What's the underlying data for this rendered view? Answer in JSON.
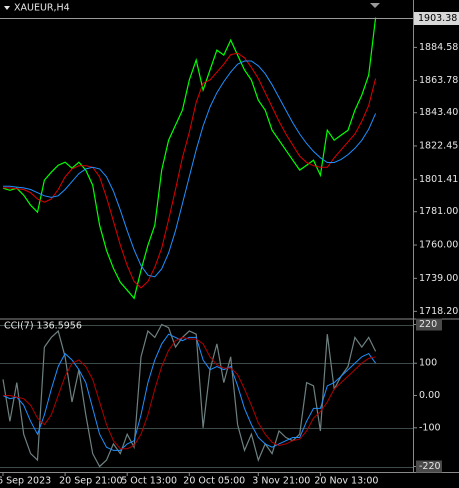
{
  "chart_data": [
    {
      "type": "line",
      "title": "XAUEUR,H4",
      "categories": [
        "6 Sep 2023",
        null,
        null,
        null,
        null,
        null,
        null,
        null,
        null,
        "20 Sep 21:00",
        null,
        null,
        null,
        null,
        null,
        null,
        null,
        null,
        "5 Oct 13:00",
        null,
        null,
        null,
        null,
        null,
        null,
        null,
        null,
        "20 Oct 05:00",
        null,
        null,
        null,
        null,
        null,
        null,
        null,
        null,
        null,
        "3 Nov 21:00",
        null,
        null,
        null,
        null,
        null,
        null,
        null,
        null,
        "20 Nov 13:00",
        null,
        null,
        null,
        null,
        null,
        null,
        null,
        null,
        null,
        null,
        null,
        null,
        null
      ],
      "series": [
        {
          "color": "#00ff00",
          "values": [
            1795.8,
            1794.5,
            1795.8,
            1791.4,
            1785.1,
            1780.7,
            1800.9,
            1805.9,
            1810.3,
            1812.2,
            1808.4,
            1812.2,
            1807.2,
            1797.7,
            1772.5,
            1756.7,
            1745.3,
            1736.5,
            1731.5,
            1726.4,
            1744.1,
            1759.8,
            1772.5,
            1807.2,
            1826.1,
            1835.6,
            1845.0,
            1864.0,
            1876.6,
            1857.7,
            1870.3,
            1882.9,
            1879.7,
            1889.2,
            1879.7,
            1870.3,
            1864.0,
            1851.3,
            1845.0,
            1832.4,
            1826.1,
            1819.8,
            1813.5,
            1807.2,
            1810.3,
            1813.5,
            1804.0,
            1832.4,
            1826.1,
            1829.3,
            1832.4,
            1845.0,
            1854.5,
            1867.1,
            1903.38,
            null,
            null,
            null,
            null,
            null
          ]
        },
        {
          "color": "#e00000",
          "values": [
            1796,
            1796,
            1795.5,
            1795,
            1793,
            1789,
            1787,
            1789,
            1795,
            1803,
            1808,
            1810,
            1810,
            1809,
            1803,
            1790,
            1775,
            1760,
            1747,
            1737,
            1733,
            1737,
            1746,
            1758,
            1776,
            1795,
            1815,
            1831,
            1850,
            1862,
            1864,
            1869,
            1874,
            1880,
            1881,
            1878,
            1872,
            1865,
            1856,
            1847,
            1838,
            1830,
            1823,
            1816,
            1812,
            1810,
            1809,
            1809,
            1815,
            1820,
            1825,
            1830,
            1838,
            1848,
            1865,
            null,
            null,
            null,
            null,
            null
          ]
        },
        {
          "color": "#1e90ff",
          "values": [
            1797,
            1797,
            1796.5,
            1796,
            1795,
            1793,
            1791,
            1790,
            1791,
            1795,
            1800,
            1805,
            1808,
            1809,
            1808,
            1803,
            1794,
            1782,
            1769,
            1757,
            1747,
            1741,
            1740,
            1745,
            1755,
            1769,
            1786,
            1803,
            1820,
            1835,
            1847,
            1856,
            1863,
            1869,
            1874,
            1876,
            1876,
            1873,
            1868,
            1861,
            1853,
            1845,
            1837,
            1830,
            1824,
            1819,
            1815,
            1812,
            1812,
            1814,
            1817,
            1821,
            1826,
            1833,
            1843,
            null,
            null,
            null,
            null,
            null
          ]
        }
      ],
      "ylim": [
        1714,
        1905
      ],
      "yticks": [
        1884.58,
        1863.78,
        {
          "value": 1843.4,
          "label": "1843.40"
        },
        1822.45,
        1801.41,
        {
          "value": 1781.0,
          "label": "1781.00"
        },
        {
          "value": 1760.0,
          "label": "1760.00"
        },
        {
          "value": 1739.0,
          "label": "1739.00"
        },
        {
          "value": 1718.2,
          "label": "1718.20"
        }
      ],
      "current_price": 1903.38
    },
    {
      "type": "line",
      "title": "CCI(7) 136.5956",
      "series": [
        {
          "color": "#6e8080",
          "values": [
            50,
            -80,
            40,
            -120,
            -180,
            -200,
            150,
            180,
            200,
            120,
            -20,
            80,
            -60,
            -180,
            -220,
            -200,
            -150,
            -180,
            -120,
            -160,
            120,
            200,
            180,
            220,
            210,
            150,
            180,
            200,
            190,
            -100,
            80,
            160,
            40,
            120,
            -90,
            -170,
            -120,
            -200,
            -150,
            -180,
            -110,
            -130,
            -140,
            -120,
            40,
            30,
            -110,
            190,
            20,
            60,
            90,
            180,
            150,
            180,
            136.5956,
            null,
            null,
            null,
            null,
            null
          ]
        },
        {
          "color": "#1e90ff",
          "values": [
            0,
            -10,
            -5,
            -30,
            -80,
            -120,
            -60,
            20,
            90,
            130,
            110,
            80,
            40,
            -40,
            -120,
            -160,
            -170,
            -170,
            -150,
            -140,
            -60,
            40,
            110,
            160,
            190,
            180,
            170,
            180,
            180,
            110,
            80,
            90,
            80,
            90,
            30,
            -40,
            -90,
            -130,
            -150,
            -160,
            -150,
            -140,
            -130,
            -130,
            -80,
            -40,
            -40,
            30,
            40,
            60,
            80,
            100,
            120,
            130,
            100,
            null,
            null,
            null,
            null,
            null
          ]
        },
        {
          "color": "#b00000",
          "values": [
            0,
            0,
            -5,
            -10,
            -30,
            -70,
            -90,
            -60,
            0,
            60,
            100,
            110,
            90,
            50,
            -20,
            -90,
            -140,
            -165,
            -165,
            -155,
            -120,
            -60,
            20,
            90,
            140,
            170,
            180,
            175,
            175,
            160,
            120,
            95,
            85,
            85,
            65,
            20,
            -30,
            -85,
            -120,
            -145,
            -155,
            -150,
            -140,
            -135,
            -110,
            -70,
            -50,
            -20,
            20,
            40,
            60,
            80,
            100,
            115,
            120,
            null,
            null,
            null,
            null,
            null
          ]
        }
      ],
      "ylim": [
        -237,
        234
      ],
      "yticks": [
        220,
        100,
        {
          "value": 0,
          "label": "0.00"
        },
        -100,
        -220
      ],
      "levels": [
        220,
        100,
        -100,
        -220
      ]
    }
  ]
}
